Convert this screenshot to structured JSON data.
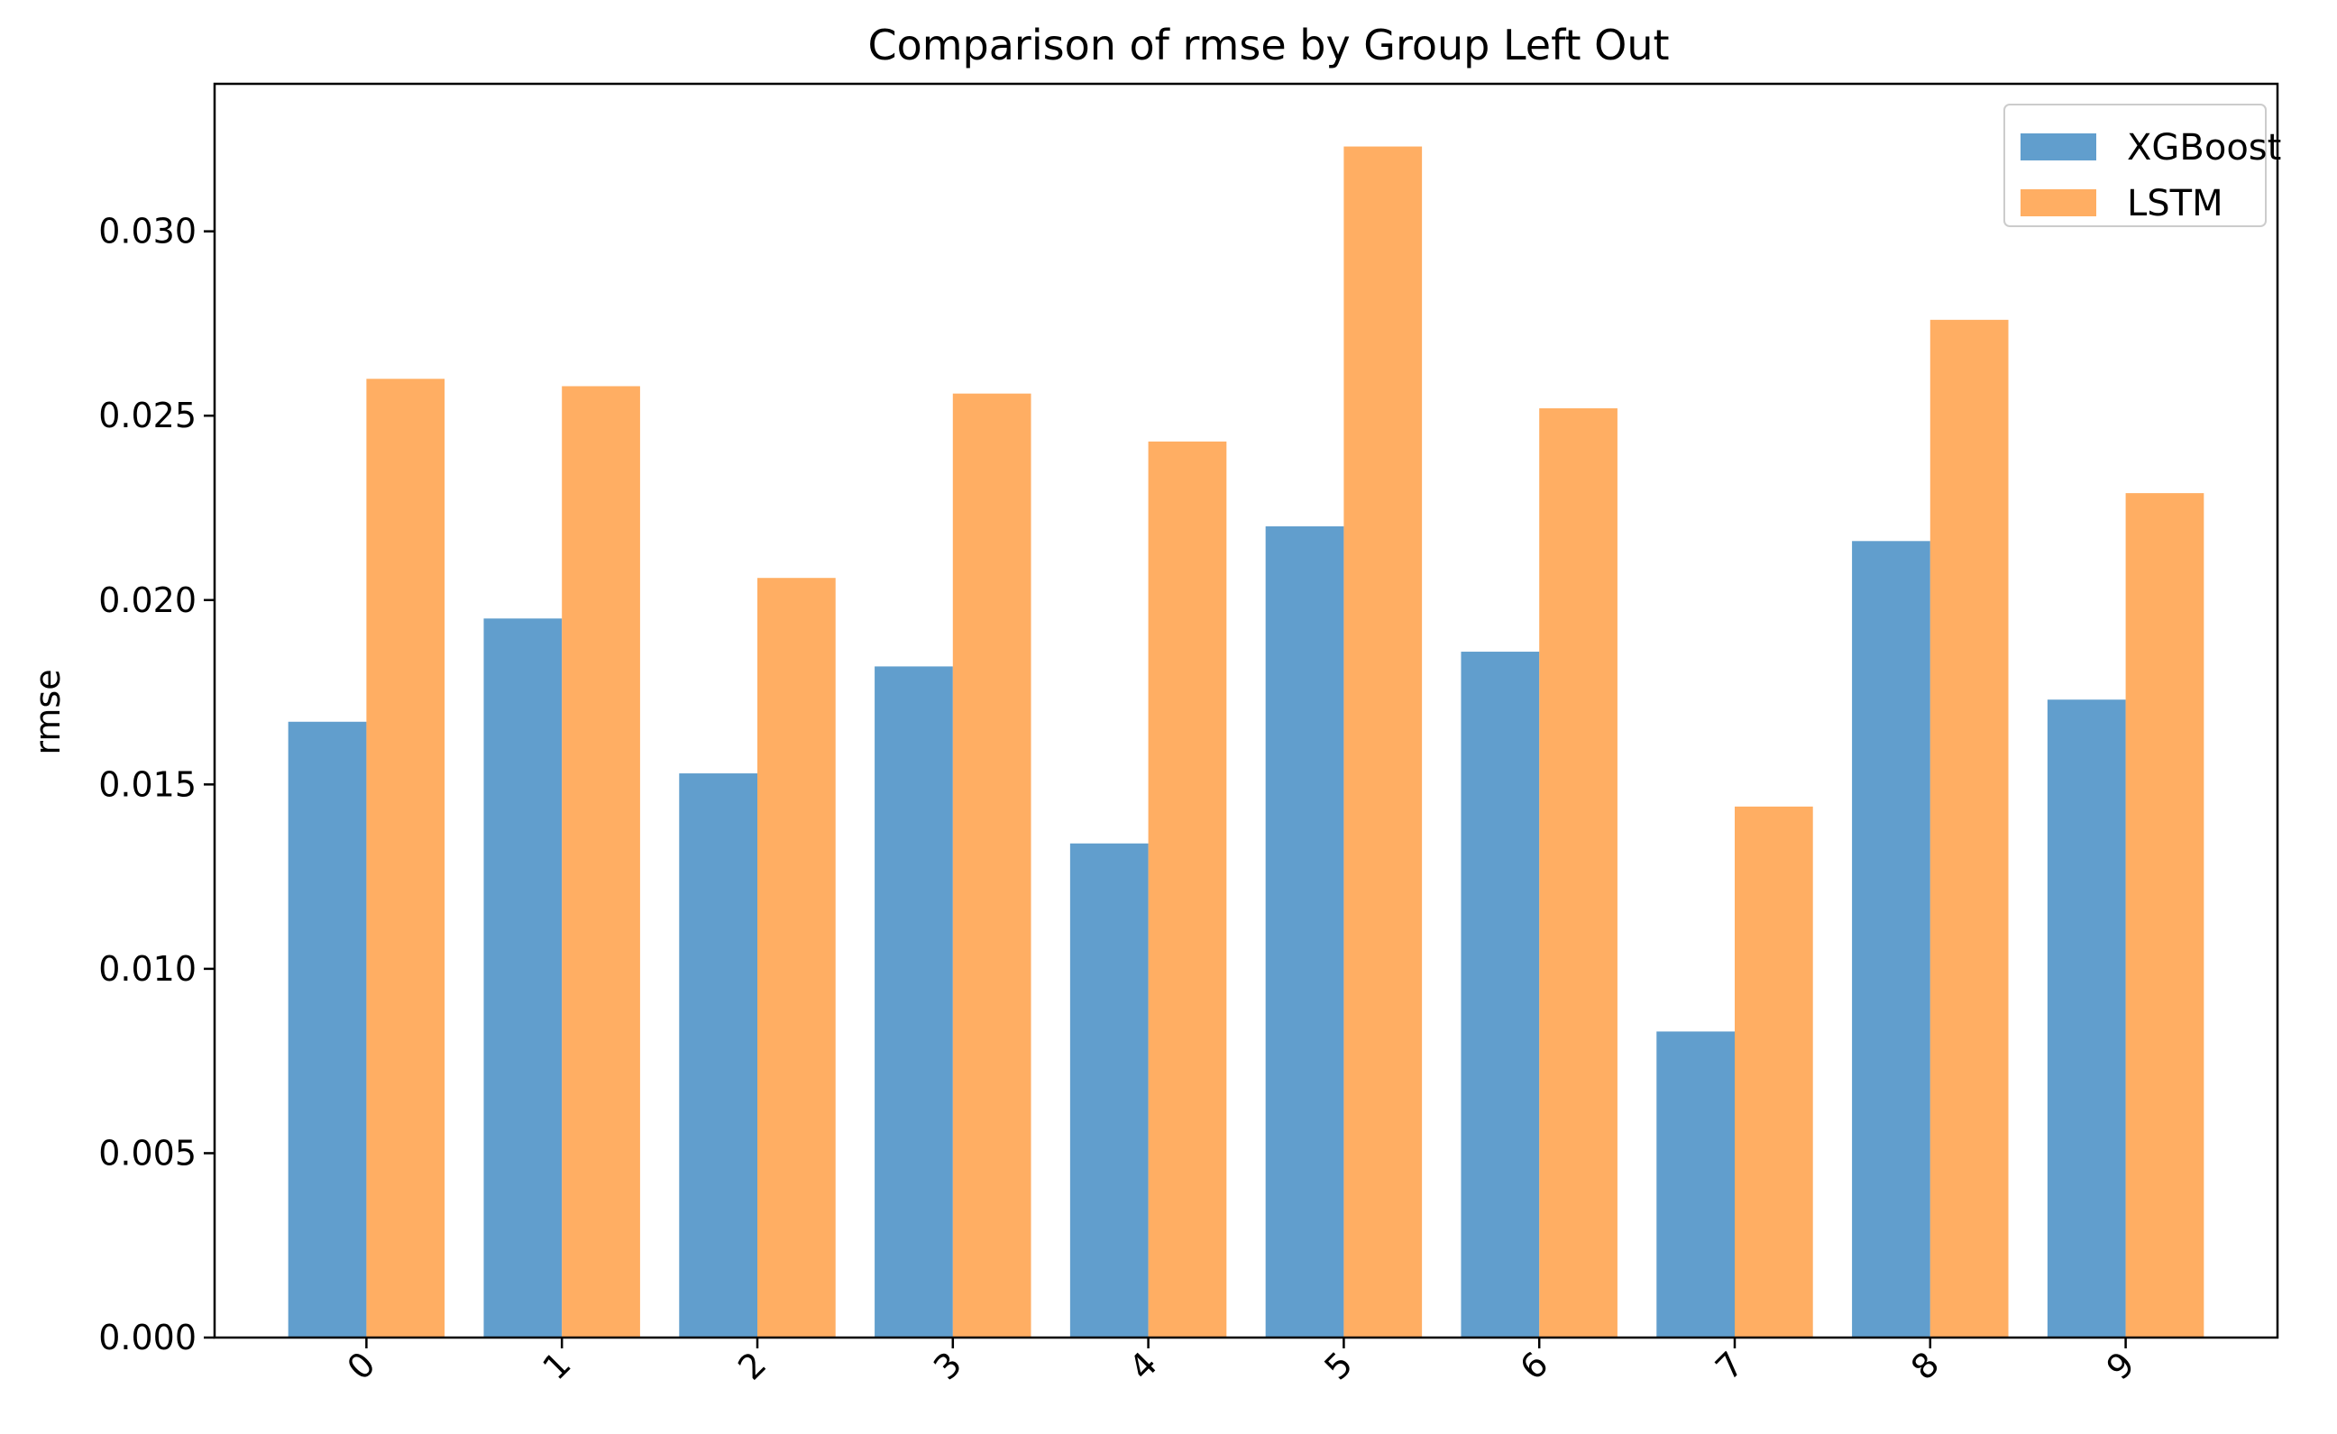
{
  "chart_data": {
    "type": "bar",
    "title": "Comparison of rmse by Group Left Out",
    "xlabel": "",
    "ylabel": "rmse",
    "categories": [
      "0",
      "1",
      "2",
      "3",
      "4",
      "5",
      "6",
      "7",
      "8",
      "9"
    ],
    "series": [
      {
        "name": "XGBoost",
        "color": "#3a86c0",
        "values": [
          0.0167,
          0.0195,
          0.0153,
          0.0182,
          0.0134,
          0.022,
          0.0186,
          0.0083,
          0.0216,
          0.0173
        ]
      },
      {
        "name": "LSTM",
        "color": "#ff9a3c",
        "values": [
          0.026,
          0.0258,
          0.0206,
          0.0256,
          0.0243,
          0.0323,
          0.0252,
          0.0144,
          0.0276,
          0.0229
        ]
      }
    ],
    "ylim": [
      0,
      0.034
    ],
    "yticks": [
      "0.000",
      "0.005",
      "0.010",
      "0.015",
      "0.020",
      "0.025",
      "0.030"
    ],
    "ytick_values": [
      0,
      0.005,
      0.01,
      0.015,
      0.02,
      0.025,
      0.03
    ],
    "xtick_rotation_deg": 45,
    "bar_opacity": 0.8,
    "grid": false,
    "legend_position": "top-right"
  }
}
